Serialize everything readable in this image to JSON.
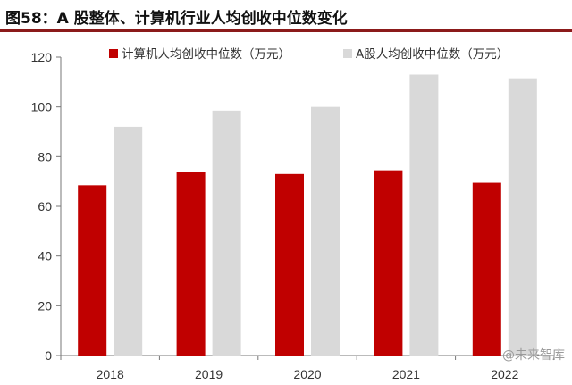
{
  "title": "图58：A 股整体、计算机行业人均创收中位数变化",
  "watermark": "@未来智库",
  "colors": {
    "series_1": "#c00000",
    "series_2": "#d9d9d9",
    "title_rule": "#8b1a1a"
  },
  "chart_data": {
    "type": "bar",
    "categories": [
      "2018",
      "2019",
      "2020",
      "2021",
      "2022"
    ],
    "series": [
      {
        "name": "计算机人均创收中位数（万元）",
        "values": [
          68.5,
          74,
          73,
          74.5,
          69.5
        ]
      },
      {
        "name": "A股人均创收中位数（万元）",
        "values": [
          92,
          98.5,
          100,
          113,
          111.5
        ]
      }
    ],
    "ylim": [
      0,
      120
    ],
    "yticks": [
      0,
      20,
      40,
      60,
      80,
      100,
      120
    ],
    "grid": false,
    "legend_position": "top"
  }
}
